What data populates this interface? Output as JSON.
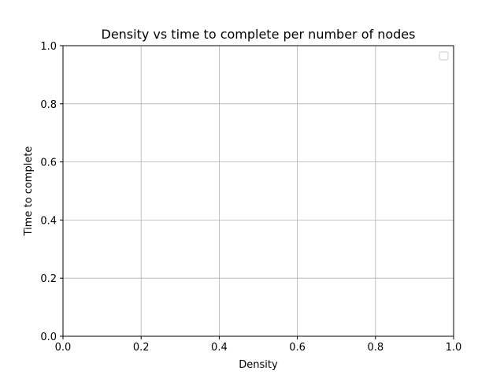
{
  "chart_data": {
    "type": "line",
    "title": "Density vs time to complete per number of nodes",
    "xlabel": "Density",
    "ylabel": "Time to complete",
    "xlim": [
      0.0,
      1.0
    ],
    "ylim": [
      0.0,
      1.0
    ],
    "xticks": [
      "0.0",
      "0.2",
      "0.4",
      "0.6",
      "0.8",
      "1.0"
    ],
    "yticks": [
      "0.0",
      "0.2",
      "0.4",
      "0.6",
      "0.8",
      "1.0"
    ],
    "xtick_values": [
      0.0,
      0.2,
      0.4,
      0.6,
      0.8,
      1.0
    ],
    "ytick_values": [
      0.0,
      0.2,
      0.4,
      0.6,
      0.8,
      1.0
    ],
    "grid": true,
    "legend": "top-right",
    "series": [],
    "colors": {
      "grid": "#b0b0b0",
      "axis": "#000000",
      "legend_border": "#cccccc"
    }
  }
}
